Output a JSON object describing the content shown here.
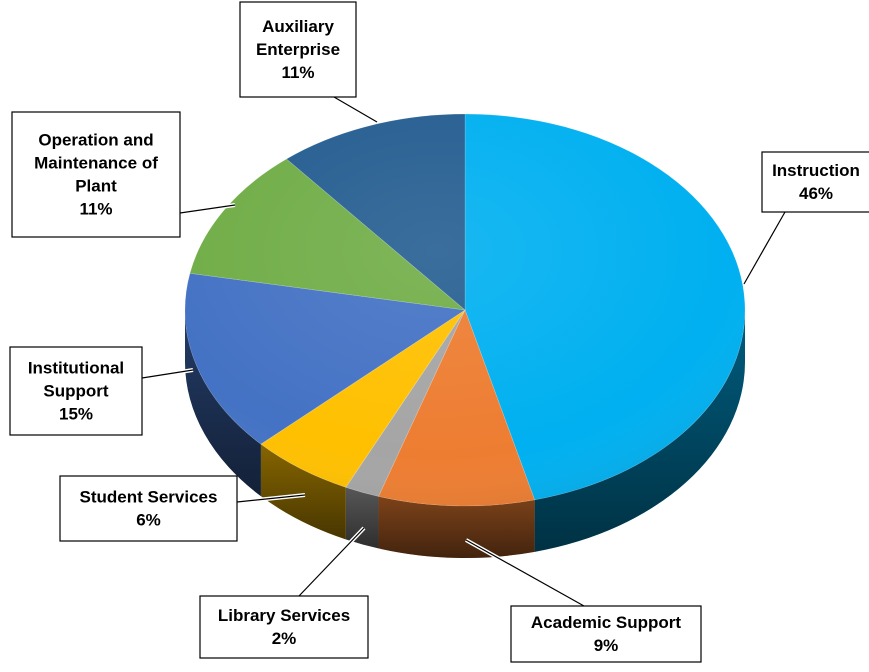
{
  "chart_data": {
    "type": "pie",
    "title": "",
    "three_d": true,
    "legend": "none",
    "data_labels": "callouts",
    "slices": [
      {
        "category": "Instruction",
        "label_lines": [
          "Instruction",
          "46%"
        ],
        "value": 46,
        "color": "#00B0F0"
      },
      {
        "category": "Academic Support",
        "label_lines": [
          "Academic Support",
          "9%"
        ],
        "value": 9,
        "color": "#ED7D31"
      },
      {
        "category": "Library Services",
        "label_lines": [
          "Library Services",
          "2%"
        ],
        "value": 2,
        "color": "#A5A5A5"
      },
      {
        "category": "Student Services",
        "label_lines": [
          "Student Services",
          "6%"
        ],
        "value": 6,
        "color": "#FFC000"
      },
      {
        "category": "Institutional Support",
        "label_lines": [
          "Institutional",
          "Support",
          "15%"
        ],
        "value": 15,
        "color": "#4472C4"
      },
      {
        "category": "Operation and Maintenance of Plant",
        "label_lines": [
          "Operation and",
          "Maintenance of",
          "Plant",
          "11%"
        ],
        "value": 11,
        "color": "#70AD47"
      },
      {
        "category": "Auxiliary Enterprise",
        "label_lines": [
          "Auxiliary",
          "Enterprise",
          "11%"
        ],
        "value": 11,
        "color": "#255E91"
      }
    ]
  }
}
